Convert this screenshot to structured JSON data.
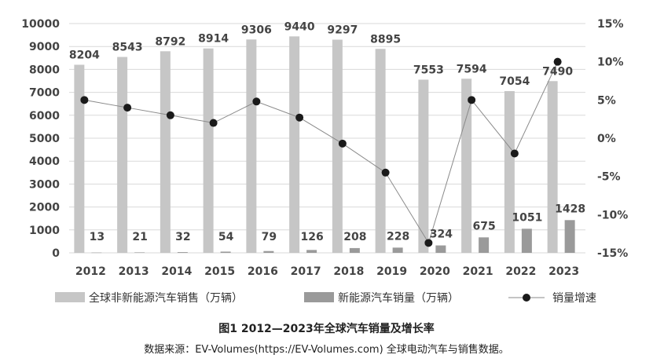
{
  "chart_data": {
    "type": "bar",
    "categories": [
      "2012",
      "2013",
      "2014",
      "2015",
      "2016",
      "2017",
      "2018",
      "2019",
      "2020",
      "2021",
      "2022",
      "2023"
    ],
    "series": [
      {
        "name": "全球非新能源汽车销售（万辆）",
        "kind": "bar",
        "axis": "left",
        "color": "#c6c6c6",
        "values": [
          8204,
          8543,
          8792,
          8914,
          9306,
          9440,
          9297,
          8895,
          7553,
          7594,
          7054,
          7490
        ]
      },
      {
        "name": "新能源汽车销量（万辆）",
        "kind": "bar",
        "axis": "left",
        "color": "#9a9a9a",
        "values": [
          13,
          21,
          32,
          54,
          79,
          126,
          208,
          228,
          324,
          675,
          1051,
          1428
        ]
      },
      {
        "name": "销量增速",
        "kind": "line",
        "axis": "right",
        "color": "#1a1a1a",
        "values": [
          5.0,
          4.0,
          3.0,
          2.0,
          4.8,
          2.7,
          -0.7,
          -4.5,
          -13.7,
          5.0,
          -2.0,
          10.0
        ]
      }
    ],
    "y_left": {
      "ylim": [
        0,
        10000
      ],
      "ticks": [
        "0",
        "1000",
        "2000",
        "3000",
        "4000",
        "5000",
        "6000",
        "7000",
        "8000",
        "9000",
        "10000"
      ],
      "tick_values": [
        0,
        1000,
        2000,
        3000,
        4000,
        5000,
        6000,
        7000,
        8000,
        9000,
        10000
      ]
    },
    "y_right": {
      "ylim": [
        -15,
        15
      ],
      "ticks": [
        "-15%",
        "-10%",
        "-5%",
        "0%",
        "5%",
        "10%",
        "15%"
      ],
      "tick_values": [
        -15,
        -10,
        -5,
        0,
        5,
        10,
        15
      ]
    },
    "grid": true,
    "legend": "bottom",
    "title": "",
    "xlabel": "",
    "ylabel": ""
  },
  "caption": "图1  2012—2023年全球汽车销量及增长率",
  "source": "数据来源：EV-Volumes(https://EV-Volumes.com) 全球电动汽车与销售数据。"
}
